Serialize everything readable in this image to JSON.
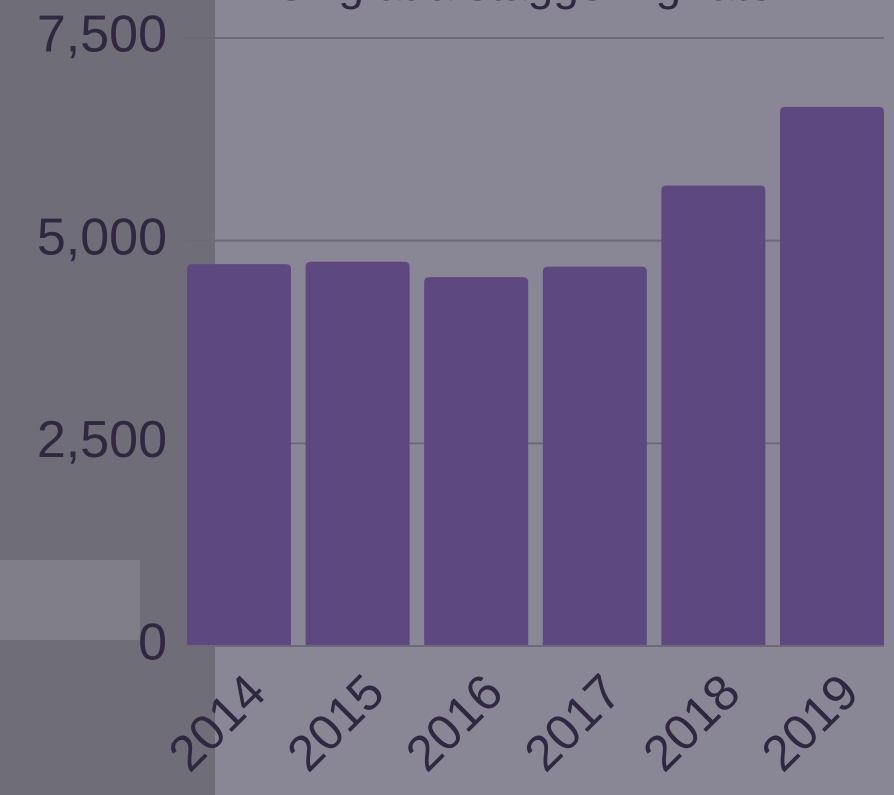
{
  "chart_data": {
    "type": "bar",
    "title": "rising at a staggering rate.",
    "categories": [
      "2014",
      "2015",
      "2016",
      "2017",
      "2018",
      "2019"
    ],
    "values": [
      4710,
      4740,
      4550,
      4680,
      5680,
      6650
    ],
    "color": "#5e4880",
    "ylim": [
      0,
      7500
    ],
    "yticks": [
      0,
      {
        "value": 2500,
        "label": "2,500"
      },
      {
        "value": 5000,
        "label": "5,000"
      },
      {
        "value": 7500,
        "label": "7,500"
      }
    ],
    "grid": true
  }
}
